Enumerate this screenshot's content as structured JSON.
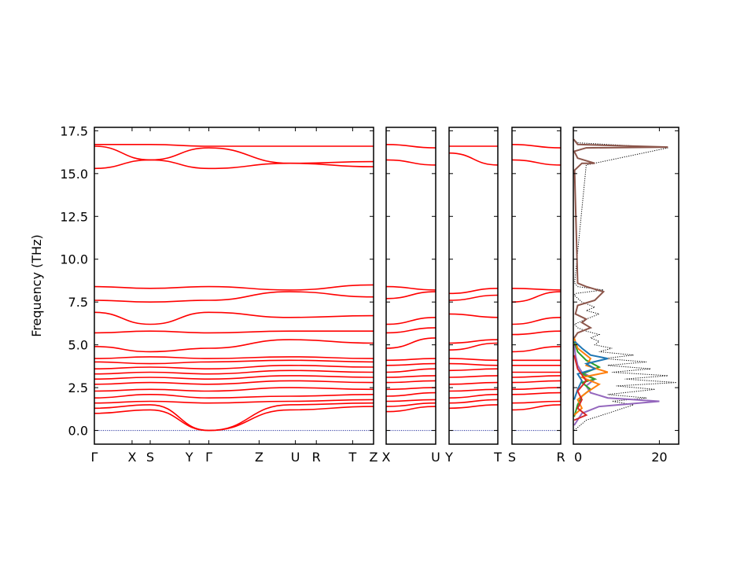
{
  "chart_data": {
    "type": "line",
    "ylabel": "Frequency (THz)",
    "ylim": [
      -0.8,
      17.7
    ],
    "y_ticks": [
      "0.0",
      "2.5",
      "5.0",
      "7.5",
      "10.0",
      "12.5",
      "15.0",
      "17.5"
    ],
    "y_tick_values": [
      0,
      2.5,
      5,
      7.5,
      10,
      12.5,
      15,
      17.5
    ],
    "band_color": "#ff0000",
    "zero_line_color": "#1f2a9a",
    "band_panels": [
      {
        "labels": [
          "Γ",
          "X",
          "S",
          "Y",
          "Γ",
          "Z",
          "U",
          "R",
          "T",
          "Z"
        ],
        "label_positions": [
          0,
          0.135,
          0.2,
          0.34,
          0.41,
          0.59,
          0.72,
          0.795,
          0.925,
          1.0
        ],
        "discontinuity_at": 0.41,
        "bands": [
          [
            0,
            1.0,
            0.2,
            1.2,
            0.41,
            0.0,
            0.7,
            1.2,
            1.0,
            1.4
          ],
          [
            0,
            1.3,
            0.2,
            1.5,
            0.41,
            0.0,
            0.7,
            1.5,
            1.0,
            1.6
          ],
          [
            0,
            1.6,
            0.2,
            1.7,
            0.41,
            1.6,
            0.7,
            1.7,
            1.0,
            1.8
          ],
          [
            0,
            1.9,
            0.2,
            2.1,
            0.41,
            1.9,
            0.7,
            2.0,
            1.0,
            2.1
          ],
          [
            0,
            2.3,
            0.2,
            2.4,
            0.41,
            2.3,
            0.7,
            2.5,
            1.0,
            2.4
          ],
          [
            0,
            2.7,
            0.2,
            2.8,
            0.41,
            2.7,
            0.7,
            2.9,
            1.0,
            2.8
          ],
          [
            0,
            3.0,
            0.2,
            3.1,
            0.41,
            3.0,
            0.7,
            3.2,
            1.0,
            3.1
          ],
          [
            0,
            3.3,
            0.2,
            3.4,
            0.41,
            3.3,
            0.7,
            3.5,
            1.0,
            3.4
          ],
          [
            0,
            3.6,
            0.2,
            3.7,
            0.41,
            3.6,
            0.7,
            3.8,
            1.0,
            3.7
          ],
          [
            0,
            4.0,
            0.2,
            3.9,
            0.41,
            4.0,
            0.7,
            4.1,
            1.0,
            4.0
          ],
          [
            0,
            4.2,
            0.2,
            4.3,
            0.41,
            4.2,
            0.7,
            4.3,
            1.0,
            4.2
          ],
          [
            0,
            4.9,
            0.2,
            4.6,
            0.41,
            4.8,
            0.7,
            5.3,
            1.0,
            5.1
          ],
          [
            0,
            5.7,
            0.2,
            5.8,
            0.41,
            5.7,
            0.7,
            5.8,
            1.0,
            5.8
          ],
          [
            0,
            6.9,
            0.2,
            6.2,
            0.41,
            6.9,
            0.7,
            6.6,
            1.0,
            6.7
          ],
          [
            0,
            7.6,
            0.2,
            7.5,
            0.41,
            7.6,
            0.7,
            8.1,
            1.0,
            7.8
          ],
          [
            0,
            8.4,
            0.2,
            8.3,
            0.41,
            8.4,
            0.7,
            8.2,
            1.0,
            8.5
          ],
          [
            0,
            15.3,
            0.2,
            15.8,
            0.41,
            15.3,
            0.7,
            15.6,
            1.0,
            15.4
          ],
          [
            0,
            16.6,
            0.2,
            15.8,
            0.41,
            16.5,
            0.7,
            15.6,
            1.0,
            15.7
          ],
          [
            0,
            16.7,
            0.2,
            16.7,
            0.41,
            16.6,
            0.7,
            16.6,
            1.0,
            16.6
          ]
        ]
      },
      {
        "labels": [
          "X",
          "U"
        ],
        "label_positions": [
          0,
          1.0
        ],
        "bands": [
          [
            0,
            1.1,
            1.0,
            1.4
          ],
          [
            0,
            1.4,
            1.0,
            1.6
          ],
          [
            0,
            1.7,
            1.0,
            1.8
          ],
          [
            0,
            2.0,
            1.0,
            2.2
          ],
          [
            0,
            2.4,
            1.0,
            2.5
          ],
          [
            0,
            2.8,
            1.0,
            2.9
          ],
          [
            0,
            3.1,
            1.0,
            3.2
          ],
          [
            0,
            3.4,
            1.0,
            3.6
          ],
          [
            0,
            3.8,
            1.0,
            3.9
          ],
          [
            0,
            4.1,
            1.0,
            4.2
          ],
          [
            0,
            4.8,
            1.0,
            5.4
          ],
          [
            0,
            5.7,
            1.0,
            6.0
          ],
          [
            0,
            6.2,
            1.0,
            6.6
          ],
          [
            0,
            7.7,
            1.0,
            8.1
          ],
          [
            0,
            8.4,
            1.0,
            8.2
          ],
          [
            0,
            15.8,
            1.0,
            15.5
          ],
          [
            0,
            16.7,
            1.0,
            16.5
          ]
        ]
      },
      {
        "labels": [
          "Y",
          "T"
        ],
        "label_positions": [
          0,
          1.0
        ],
        "bands": [
          [
            0,
            1.3,
            1.0,
            1.5
          ],
          [
            0,
            1.6,
            1.0,
            1.8
          ],
          [
            0,
            1.9,
            1.0,
            2.1
          ],
          [
            0,
            2.3,
            1.0,
            2.4
          ],
          [
            0,
            2.7,
            1.0,
            2.8
          ],
          [
            0,
            3.1,
            1.0,
            3.2
          ],
          [
            0,
            3.5,
            1.0,
            3.6
          ],
          [
            0,
            3.9,
            1.0,
            3.8
          ],
          [
            0,
            4.2,
            1.0,
            4.1
          ],
          [
            0,
            4.7,
            1.0,
            5.1
          ],
          [
            0,
            5.1,
            1.0,
            5.3
          ],
          [
            0,
            6.8,
            1.0,
            6.6
          ],
          [
            0,
            7.6,
            1.0,
            7.9
          ],
          [
            0,
            8.0,
            1.0,
            8.3
          ],
          [
            0,
            16.2,
            1.0,
            15.5
          ],
          [
            0,
            16.6,
            1.0,
            16.6
          ]
        ]
      },
      {
        "labels": [
          "S",
          "R"
        ],
        "label_positions": [
          0,
          1.0
        ],
        "bands": [
          [
            0,
            1.2,
            1.0,
            1.5
          ],
          [
            0,
            1.6,
            1.0,
            1.7
          ],
          [
            0,
            2.1,
            1.0,
            2.2
          ],
          [
            0,
            2.4,
            1.0,
            2.5
          ],
          [
            0,
            2.8,
            1.0,
            2.9
          ],
          [
            0,
            3.1,
            1.0,
            3.2
          ],
          [
            0,
            3.4,
            1.0,
            3.4
          ],
          [
            0,
            3.8,
            1.0,
            3.8
          ],
          [
            0,
            4.1,
            1.0,
            4.1
          ],
          [
            0,
            4.6,
            1.0,
            4.9
          ],
          [
            0,
            5.6,
            1.0,
            5.8
          ],
          [
            0,
            6.2,
            1.0,
            6.6
          ],
          [
            0,
            7.5,
            1.0,
            8.1
          ],
          [
            0,
            8.3,
            1.0,
            8.2
          ],
          [
            0,
            15.8,
            1.0,
            15.5
          ],
          [
            0,
            16.7,
            1.0,
            16.5
          ]
        ]
      }
    ],
    "dos_panel": {
      "x_ticks": [
        "0",
        "20"
      ],
      "x_tick_values": [
        0,
        20
      ],
      "xlim": [
        0,
        24.5
      ],
      "series": [
        {
          "color": "#000000",
          "style": "dotted",
          "role": "total",
          "x": [
            0.2,
            3,
            8,
            14,
            9,
            17,
            8,
            19,
            10,
            24,
            12,
            22,
            9,
            18,
            8,
            17,
            7,
            14,
            6,
            9,
            5,
            6,
            4,
            6,
            3,
            1,
            0.3,
            2,
            4,
            6,
            3,
            5,
            2,
            0.2,
            0.5,
            7,
            1,
            0.3,
            3,
            22,
            1,
            0.1
          ],
          "y": [
            0.0,
            0.6,
            1.0,
            1.5,
            1.7,
            1.9,
            2.1,
            2.4,
            2.6,
            2.8,
            3.0,
            3.2,
            3.4,
            3.6,
            3.8,
            4.0,
            4.2,
            4.4,
            4.6,
            4.8,
            5.0,
            5.2,
            5.4,
            5.6,
            5.8,
            6.0,
            6.2,
            6.4,
            6.6,
            6.8,
            7.0,
            7.2,
            7.5,
            7.9,
            8.0,
            8.2,
            8.4,
            8.6,
            15.5,
            16.5,
            16.8,
            17.0
          ]
        },
        {
          "color": "#9467bd",
          "style": "solid",
          "x": [
            0.2,
            2,
            6,
            20,
            8,
            4,
            3,
            5,
            2,
            1,
            0.5,
            0.2
          ],
          "y": [
            0.3,
            1.0,
            1.4,
            1.7,
            1.9,
            2.2,
            2.6,
            3.0,
            3.4,
            3.8,
            4.4,
            5.0
          ]
        },
        {
          "color": "#2ca02c",
          "style": "solid",
          "x": [
            0.2,
            1,
            2,
            4,
            2,
            5,
            2,
            6,
            3,
            1,
            0.2
          ],
          "y": [
            0.8,
            1.5,
            2.0,
            2.4,
            2.8,
            3.0,
            3.3,
            3.7,
            4.1,
            4.6,
            5.2
          ]
        },
        {
          "color": "#ff7f0e",
          "style": "solid",
          "x": [
            0.2,
            2,
            1,
            3,
            6,
            2,
            8,
            3,
            4,
            1,
            0.2
          ],
          "y": [
            0.9,
            1.3,
            1.8,
            2.2,
            2.7,
            3.1,
            3.4,
            3.8,
            4.2,
            4.8,
            5.4
          ]
        },
        {
          "color": "#1f77b4",
          "style": "solid",
          "x": [
            0.2,
            1,
            2,
            1,
            5,
            3,
            8,
            4,
            2,
            0.3
          ],
          "y": [
            1.8,
            2.4,
            2.9,
            3.3,
            3.6,
            3.9,
            4.2,
            4.4,
            4.8,
            5.2
          ]
        },
        {
          "color": "#d62728",
          "style": "solid",
          "x": [
            0.2,
            3,
            1,
            2,
            1,
            3,
            1,
            0.2
          ],
          "y": [
            0.6,
            0.9,
            1.3,
            1.8,
            2.3,
            2.9,
            3.6,
            4.4
          ]
        },
        {
          "color": "#8c564b",
          "style": "solid",
          "x": [
            0.2,
            1,
            4,
            2,
            3,
            0.5,
            1,
            5,
            7,
            3,
            1,
            0.3,
            2,
            5,
            1,
            0.2,
            3,
            22,
            1,
            0.1
          ],
          "y": [
            5.4,
            5.7,
            6.0,
            6.3,
            6.5,
            6.8,
            7.3,
            7.6,
            8.1,
            8.4,
            8.6,
            15.2,
            15.6,
            15.6,
            15.9,
            16.3,
            16.5,
            16.55,
            16.7,
            17.0
          ]
        }
      ]
    }
  }
}
